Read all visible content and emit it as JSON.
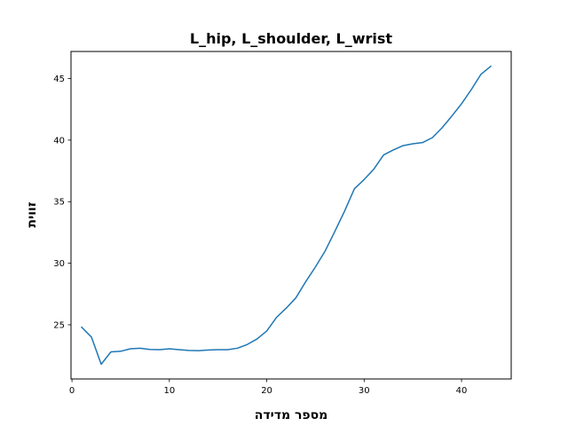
{
  "chart_data": {
    "type": "line",
    "title": "L_hip, L_shoulder, L_wrist",
    "xlabel": "מספר מדידה",
    "ylabel": "זווית",
    "xlim": [
      -0.1,
      45.1
    ],
    "ylim": [
      20.6,
      47.2
    ],
    "xticks": [
      0,
      10,
      20,
      30,
      40
    ],
    "yticks": [
      25,
      30,
      35,
      40,
      45
    ],
    "grid": false,
    "colors": {
      "line": "#1f77b4",
      "axes": "#000000"
    },
    "series": [
      {
        "x": [
          1,
          2,
          3,
          4,
          5,
          6,
          7,
          8,
          9,
          10,
          11,
          12,
          13,
          14,
          15,
          16,
          17,
          18,
          19,
          20,
          21,
          22,
          23,
          24,
          25,
          26,
          27,
          28,
          29,
          30,
          31,
          32,
          33,
          34,
          35,
          36,
          37,
          38,
          39,
          40,
          41,
          42,
          43
        ],
        "values": [
          24.8,
          24.0,
          21.8,
          22.8,
          22.85,
          23.05,
          23.1,
          23.0,
          22.98,
          23.05,
          22.98,
          22.92,
          22.9,
          22.95,
          22.98,
          22.98,
          23.1,
          23.4,
          23.85,
          24.5,
          25.6,
          26.35,
          27.2,
          28.5,
          29.7,
          31.0,
          32.6,
          34.25,
          36.05,
          36.8,
          37.65,
          38.8,
          39.2,
          39.55,
          39.7,
          39.8,
          40.2,
          41.0,
          41.95,
          42.95,
          44.1,
          45.35,
          46.0
        ]
      }
    ]
  }
}
